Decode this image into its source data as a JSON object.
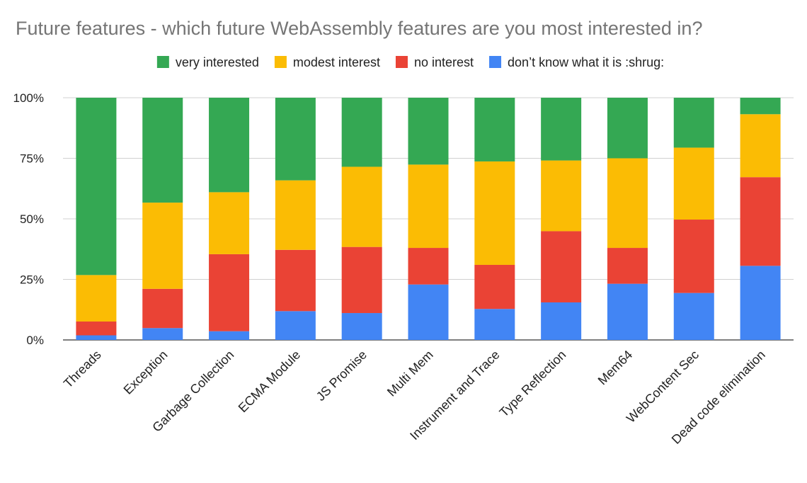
{
  "chart_data": {
    "type": "bar",
    "stacked": "percent",
    "title": "Future features - which future WebAssembly features are you most interested in?",
    "xlabel": "",
    "ylabel": "",
    "ylim": [
      0,
      100
    ],
    "y_ticks": [
      "0%",
      "25%",
      "50%",
      "75%",
      "100%"
    ],
    "grid": true,
    "legend_position": "top",
    "categories": [
      "Threads",
      "Exception",
      "Garbage Collection",
      "ECMA Module",
      "JS Promise",
      "Multi Mem",
      "Instrument and Trace",
      "Type Reflection",
      "Mem64",
      "WebContent Sec",
      "Dead code elimination"
    ],
    "series": [
      {
        "name": "don’t know what it is :shrug:",
        "color": "#4285f4",
        "values": [
          1.9,
          4.9,
          3.6,
          11.9,
          11.1,
          22.9,
          12.8,
          15.5,
          23.2,
          19.4,
          30.6
        ]
      },
      {
        "name": "no interest",
        "color": "#ea4335",
        "values": [
          5.7,
          16.2,
          31.8,
          25.3,
          27.3,
          15.1,
          18.2,
          29.4,
          14.8,
          30.3,
          36.6
        ]
      },
      {
        "name": "modest interest",
        "color": "#fbbc04",
        "values": [
          19.2,
          35.6,
          25.6,
          28.7,
          33.1,
          34.4,
          42.7,
          29.2,
          37.0,
          29.7,
          26.0
        ]
      },
      {
        "name": "very interested",
        "color": "#34a853",
        "values": [
          73.2,
          43.3,
          39.0,
          34.1,
          28.5,
          27.6,
          26.3,
          25.9,
          25.0,
          20.6,
          6.8
        ]
      }
    ],
    "legend_order": [
      3,
      2,
      1,
      0
    ]
  }
}
